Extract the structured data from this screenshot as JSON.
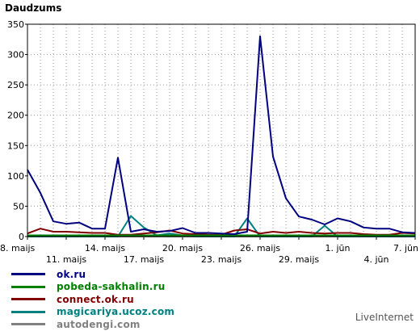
{
  "chart_data": {
    "type": "line",
    "ylabel": "Daudzums",
    "ylim": [
      0,
      350
    ],
    "yticks": [
      0,
      50,
      100,
      150,
      200,
      250,
      300,
      350
    ],
    "grid": true,
    "legend_placement": "bottom-left",
    "x": [
      "8.05",
      "9.05",
      "10.05",
      "11.05",
      "12.05",
      "13.05",
      "14.05",
      "15.05",
      "16.05",
      "17.05",
      "18.05",
      "19.05",
      "20.05",
      "21.05",
      "22.05",
      "23.05",
      "24.05",
      "25.05",
      "26.05",
      "27.05",
      "28.05",
      "29.05",
      "30.05",
      "31.05",
      "1.06",
      "2.06",
      "3.06",
      "4.06",
      "5.06",
      "6.06",
      "7.06"
    ],
    "xtick_labels": [
      {
        "index": 0,
        "label": "8. maijs",
        "row": 1
      },
      {
        "index": 3,
        "label": "11. maijs",
        "row": 2
      },
      {
        "index": 6,
        "label": "14. maijs",
        "row": 1
      },
      {
        "index": 9,
        "label": "17. maijs",
        "row": 2
      },
      {
        "index": 12,
        "label": "20. maijs",
        "row": 1
      },
      {
        "index": 15,
        "label": "23. maijs",
        "row": 2
      },
      {
        "index": 18,
        "label": "26. maijs",
        "row": 1
      },
      {
        "index": 21,
        "label": "29. maijs",
        "row": 2
      },
      {
        "index": 24,
        "label": "1. jūn",
        "row": 1
      },
      {
        "index": 27,
        "label": "4. jūn",
        "row": 2
      },
      {
        "index": 30,
        "label": "7. jūn",
        "row": 1
      }
    ],
    "series": [
      {
        "name": "ok.ru",
        "color": "#000080",
        "values": [
          110,
          72,
          25,
          21,
          23,
          13,
          13,
          130,
          8,
          12,
          8,
          9,
          14,
          6,
          6,
          5,
          4,
          8,
          330,
          132,
          63,
          33,
          28,
          20,
          30,
          25,
          15,
          13,
          13,
          7,
          6
        ]
      },
      {
        "name": "pobeda-sakhalin.ru",
        "color": "#008000",
        "values": [
          2,
          2,
          2,
          2,
          2,
          2,
          2,
          2,
          2,
          2,
          2,
          2,
          2,
          2,
          2,
          2,
          2,
          2,
          2,
          2,
          2,
          2,
          2,
          2,
          2,
          2,
          2,
          2,
          2,
          2,
          2
        ]
      },
      {
        "name": "connect.ok.ru",
        "color": "#800000",
        "values": [
          5,
          13,
          8,
          8,
          7,
          6,
          6,
          3,
          3,
          5,
          7,
          10,
          5,
          4,
          3,
          3,
          10,
          12,
          5,
          8,
          6,
          8,
          6,
          5,
          6,
          6,
          4,
          3,
          3,
          6,
          5
        ]
      },
      {
        "name": "magicariya.ucoz.com",
        "color": "#008080",
        "values": [
          0,
          0,
          0,
          0,
          0,
          0,
          0,
          0,
          34,
          15,
          2,
          5,
          2,
          0,
          0,
          0,
          0,
          30,
          0,
          0,
          0,
          0,
          0,
          18,
          0,
          0,
          0,
          0,
          0,
          0,
          0
        ]
      },
      {
        "name": "autodengi.com",
        "color": "#808080",
        "values": [
          0,
          0,
          0,
          0,
          0,
          0,
          0,
          0,
          0,
          0,
          0,
          0,
          0,
          0,
          0,
          0,
          0,
          0,
          0,
          0,
          0,
          0,
          0,
          0,
          0,
          0,
          0,
          0,
          0,
          0,
          0
        ]
      }
    ]
  },
  "brand": "LiveInternet"
}
